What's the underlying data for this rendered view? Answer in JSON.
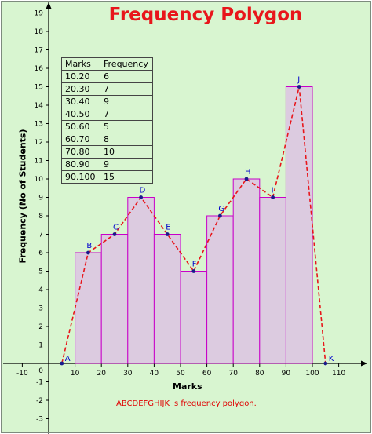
{
  "chart_data": {
    "type": "histogram-polygon",
    "title": "Frequency Polygon",
    "xlabel": "Marks",
    "ylabel": "Frequency (No of Students)",
    "xlim": [
      -15,
      117
    ],
    "ylim": [
      -4,
      20
    ],
    "x_ticks": [
      -10,
      10,
      20,
      30,
      40,
      50,
      60,
      70,
      80,
      90,
      100,
      110
    ],
    "y_ticks": [
      -3,
      -2,
      -1,
      1,
      2,
      3,
      4,
      5,
      6,
      7,
      8,
      9,
      10,
      11,
      12,
      13,
      14,
      15,
      16,
      17,
      18,
      19
    ],
    "origin_label": "0",
    "bars": [
      {
        "from": 10,
        "to": 20,
        "value": 6
      },
      {
        "from": 20,
        "to": 30,
        "value": 7
      },
      {
        "from": 30,
        "to": 40,
        "value": 9
      },
      {
        "from": 40,
        "to": 50,
        "value": 7
      },
      {
        "from": 50,
        "to": 60,
        "value": 5
      },
      {
        "from": 60,
        "to": 70,
        "value": 8
      },
      {
        "from": 70,
        "to": 80,
        "value": 10
      },
      {
        "from": 80,
        "to": 90,
        "value": 9
      },
      {
        "from": 90,
        "to": 100,
        "value": 15
      }
    ],
    "polygon": [
      {
        "label": "A",
        "x": 5,
        "y": 0
      },
      {
        "label": "B",
        "x": 15,
        "y": 6
      },
      {
        "label": "C",
        "x": 25,
        "y": 7
      },
      {
        "label": "D",
        "x": 35,
        "y": 9
      },
      {
        "label": "E",
        "x": 45,
        "y": 7
      },
      {
        "label": "F",
        "x": 55,
        "y": 5
      },
      {
        "label": "G",
        "x": 65,
        "y": 8
      },
      {
        "label": "H",
        "x": 75,
        "y": 10
      },
      {
        "label": "I",
        "x": 85,
        "y": 9
      },
      {
        "label": "J",
        "x": 95,
        "y": 15
      },
      {
        "label": "K",
        "x": 105,
        "y": 0
      }
    ],
    "table": {
      "headers": [
        "Marks",
        "Frequency"
      ],
      "rows": [
        [
          "10.20",
          "6"
        ],
        [
          "20.30",
          "7"
        ],
        [
          "30.40",
          "9"
        ],
        [
          "40.50",
          "7"
        ],
        [
          "50.60",
          "5"
        ],
        [
          "60.70",
          "8"
        ],
        [
          "70.80",
          "10"
        ],
        [
          "80.90",
          "9"
        ],
        [
          "90.100",
          "15"
        ]
      ]
    },
    "annotation": "ABCDEFGHIJK is frequency polygon.",
    "grid": false,
    "colors": {
      "background": "#d8f5d0",
      "bar_fill": "#dccbe0",
      "bar_stroke": "#c800c8",
      "polygon_line": "#e8161b",
      "point": "#1a1a8c",
      "point_label": "#0000cc",
      "title": "#e8161b"
    }
  }
}
